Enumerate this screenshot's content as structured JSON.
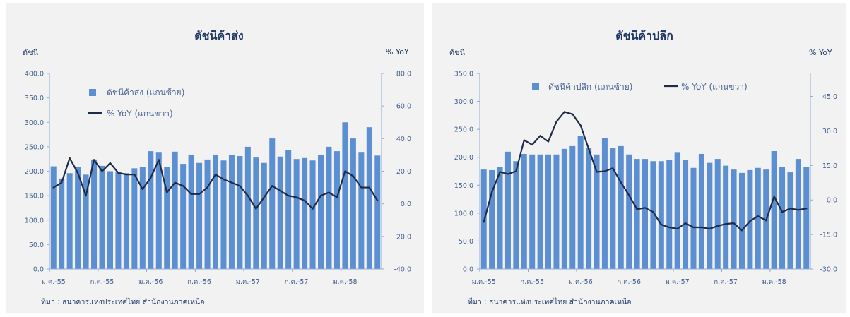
{
  "colors": {
    "page_background": "#ffffff",
    "panel_background": "#f2f2f2",
    "title": "#1f3864",
    "axis_line": "#8eaadb",
    "tick_label": "#44618f",
    "bar": "#5b8fd1",
    "line": "#1f2b47"
  },
  "chart_data": [
    {
      "type": "bar",
      "title": "ดัชนีค้าส่ง",
      "ylabel": "ดัชนี",
      "y2label": "% YoY",
      "ylim": [
        0,
        400
      ],
      "y2lim": [
        -40,
        80
      ],
      "y_ticks": [
        "0.0",
        "50.0",
        "100.0",
        "150.0",
        "200.0",
        "250.0",
        "300.0",
        "350.0",
        "400.0"
      ],
      "y2_ticks": [
        "-40.0",
        "-20.0",
        "0.0",
        "20.0",
        "40.0",
        "60.0",
        "80.0"
      ],
      "x_tick_labels": [
        "ม.ค.-55",
        "ก.ค.-55",
        "ม.ค.-56",
        "ก.ค.-56",
        "ม.ค.-57",
        "ก.ค.-57",
        "ม.ค.-58"
      ],
      "grid": false,
      "legend_position": "top-left",
      "series": [
        {
          "name": "ดัชนีค้าส่ง (แกนซ้าย)",
          "type": "bar",
          "axis": "left",
          "values": [
            210,
            185,
            196,
            209,
            193,
            224,
            211,
            200,
            199,
            196,
            206,
            208,
            241,
            238,
            208,
            240,
            215,
            234,
            217,
            224,
            234,
            222,
            234,
            231,
            250,
            228,
            217,
            267,
            230,
            243,
            225,
            227,
            222,
            234,
            250,
            241,
            300,
            267,
            238,
            290,
            232
          ]
        },
        {
          "name": "% YoY (แกนขวา)",
          "type": "line",
          "axis": "right",
          "values": [
            10,
            13,
            28,
            19,
            5,
            27,
            20,
            25,
            19,
            18,
            18,
            9,
            16,
            27,
            7,
            13,
            11,
            6,
            6,
            10,
            18,
            15,
            13,
            11,
            5,
            -3,
            4,
            11,
            8,
            5,
            4,
            2,
            -3,
            5,
            7,
            4,
            20,
            17,
            10,
            10,
            2
          ]
        }
      ],
      "source": "ที่มา : ธนาคารแห่งประเทศไทย  สำนักงานภาคเหนือ"
    },
    {
      "type": "bar",
      "title": "ดัชนีค้าปลีก",
      "ylabel": "ดัชนี",
      "y2label": "% YoY",
      "ylim": [
        0,
        350
      ],
      "y2lim": [
        -30,
        55
      ],
      "y_ticks": [
        "0.0",
        "50.0",
        "100.0",
        "150.0",
        "200.0",
        "250.0",
        "300.0",
        "350.0"
      ],
      "y2_ticks": [
        "-30.0",
        "-15.0",
        "0.0",
        "15.0",
        "30.0",
        "45.0"
      ],
      "x_tick_labels": [
        "ม.ค.-55",
        "ก.ค.-55",
        "ม.ค.-56",
        "ก.ค.-56",
        "ม.ค.-57",
        "ก.ค.-57",
        "ม.ค.-58"
      ],
      "grid": false,
      "legend_position": "top",
      "series": [
        {
          "name": "ดัชนีค้าปลีก (แกนซ้าย)",
          "type": "bar",
          "axis": "left",
          "values": [
            178,
            177,
            182,
            210,
            193,
            206,
            205,
            205,
            205,
            205,
            215,
            220,
            238,
            217,
            205,
            235,
            216,
            220,
            205,
            197,
            197,
            193,
            193,
            195,
            208,
            195,
            181,
            206,
            190,
            197,
            185,
            178,
            172,
            177,
            181,
            178,
            211,
            183,
            173,
            197,
            182
          ]
        },
        {
          "name": "% YoY (แกนขวา)",
          "type": "line",
          "axis": "right",
          "values": [
            -9.5,
            3.4,
            12.2,
            11.3,
            12.5,
            26,
            24,
            27.9,
            25.4,
            34,
            38.3,
            37.3,
            32.4,
            22.3,
            12.2,
            12.5,
            13.8,
            7.6,
            2.1,
            -4,
            -3.4,
            -5.2,
            -10.7,
            -11.9,
            -12.5,
            -10.1,
            -11.9,
            -11.9,
            -12.5,
            -11.3,
            -10.4,
            -10.1,
            -13.2,
            -9.2,
            -7,
            -8.9,
            1.5,
            -5.2,
            -3.7,
            -4.3,
            -3.7
          ]
        }
      ],
      "source": "ที่มา : ธนาคารแห่งประเทศไทย  สำนักงานภาคเหนือ"
    }
  ]
}
